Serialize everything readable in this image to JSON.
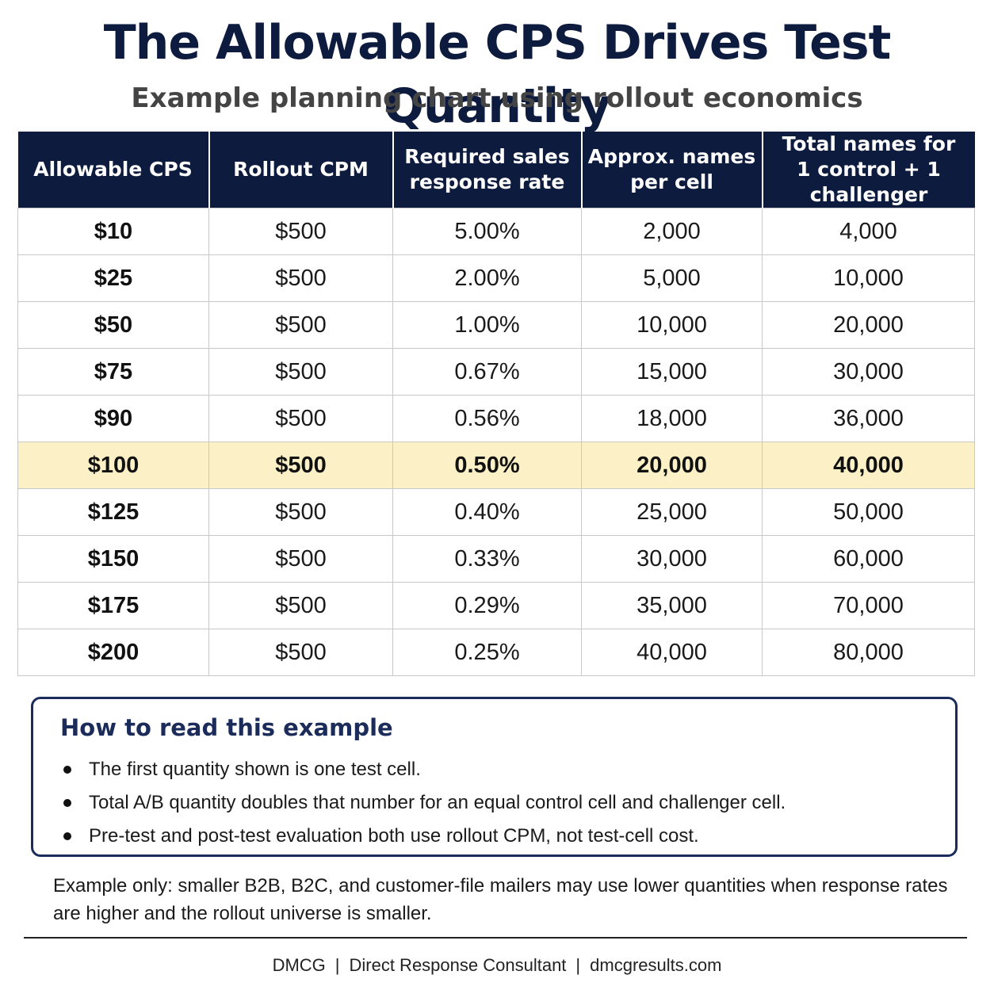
{
  "header": {
    "title": "The Allowable CPS Drives Test Quantity",
    "subtitle": "Example planning chart using rollout economics"
  },
  "table": {
    "columns": [
      "Allowable CPS",
      "Rollout CPM",
      "Required sales\nresponse rate",
      "Approx. names\nper cell",
      "Total names for\n1 control + 1 challenger"
    ],
    "rows": [
      {
        "cps": "$10",
        "cpm": "$500",
        "rate": "5.00%",
        "per_cell": "2,000",
        "total": "4,000",
        "highlight": false
      },
      {
        "cps": "$25",
        "cpm": "$500",
        "rate": "2.00%",
        "per_cell": "5,000",
        "total": "10,000",
        "highlight": false
      },
      {
        "cps": "$50",
        "cpm": "$500",
        "rate": "1.00%",
        "per_cell": "10,000",
        "total": "20,000",
        "highlight": false
      },
      {
        "cps": "$75",
        "cpm": "$500",
        "rate": "0.67%",
        "per_cell": "15,000",
        "total": "30,000",
        "highlight": false
      },
      {
        "cps": "$90",
        "cpm": "$500",
        "rate": "0.56%",
        "per_cell": "18,000",
        "total": "36,000",
        "highlight": false
      },
      {
        "cps": "$100",
        "cpm": "$500",
        "rate": "0.50%",
        "per_cell": "20,000",
        "total": "40,000",
        "highlight": true
      },
      {
        "cps": "$125",
        "cpm": "$500",
        "rate": "0.40%",
        "per_cell": "25,000",
        "total": "50,000",
        "highlight": false
      },
      {
        "cps": "$150",
        "cpm": "$500",
        "rate": "0.33%",
        "per_cell": "30,000",
        "total": "60,000",
        "highlight": false
      },
      {
        "cps": "$175",
        "cpm": "$500",
        "rate": "0.29%",
        "per_cell": "35,000",
        "total": "70,000",
        "highlight": false
      },
      {
        "cps": "$200",
        "cpm": "$500",
        "rate": "0.25%",
        "per_cell": "40,000",
        "total": "80,000",
        "highlight": false
      }
    ]
  },
  "note": {
    "heading": "How to read this example",
    "bullets": [
      "The first quantity shown is one test cell.",
      "Total A/B quantity doubles that number for an equal control cell and challenger cell.",
      "Pre-test and post-test evaluation both use rollout CPM, not test-cell cost."
    ]
  },
  "disclaimer": "Example only: smaller B2B, B2C, and customer-file mailers may use lower quantities when response rates are higher and the rollout universe is smaller.",
  "footer": {
    "brand": "DMCG",
    "separator": "|",
    "role": "Direct Response Consultant",
    "site": "dmcgresults.com"
  },
  "colors": {
    "header_bg": "#0d1b3e",
    "highlight_row": "#fbf0c6",
    "note_border": "#1b2b5a"
  }
}
